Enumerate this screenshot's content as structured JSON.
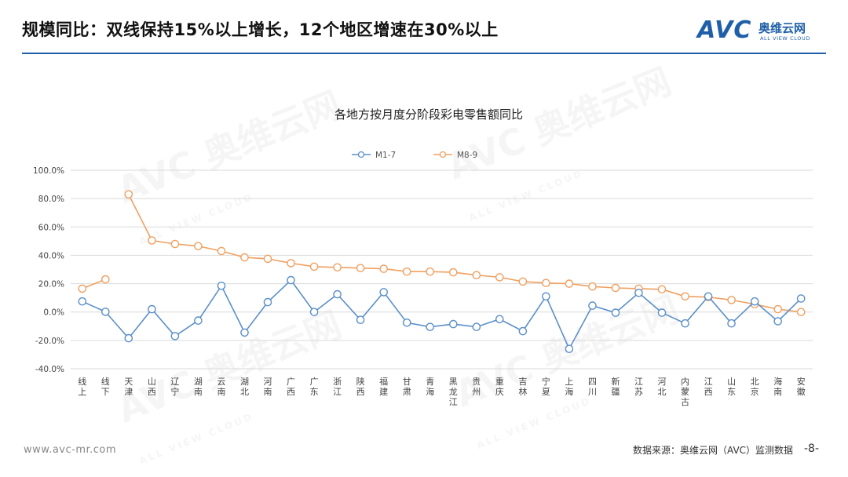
{
  "slide": {
    "title": "规模同比：双线保持15%以上增长，12个地区增速在30%以上",
    "logo_letters": "AVC",
    "logo_cn": "奥维云网",
    "logo_en": "ALL VIEW CLOUD",
    "watermark_cn": "奥维云网",
    "watermark_en": "ALL VIEW CLOUD",
    "footer_url": "www.avc-mr.com",
    "footer_source": "数据来源：奥维云网（AVC）监测数据",
    "page_number": "-8-",
    "accent_color": "#1f5fa8"
  },
  "chart_data": {
    "type": "line",
    "title": "各地方按月度分阶段彩电零售额同比",
    "categories": [
      "线上",
      "线下",
      "天津",
      "山西",
      "辽宁",
      "湖南",
      "云南",
      "湖北",
      "河南",
      "广西",
      "广东",
      "浙江",
      "陕西",
      "福建",
      "甘肃",
      "青海",
      "黑龙江",
      "贵州",
      "重庆",
      "吉林",
      "宁夏",
      "上海",
      "四川",
      "新疆",
      "江苏",
      "河北",
      "内蒙古",
      "江西",
      "山东",
      "北京",
      "海南",
      "安徽"
    ],
    "series": [
      {
        "name": "M1-7",
        "color": "#5b8fc9",
        "values": [
          7.5,
          0.2,
          -18.5,
          2.0,
          -17.0,
          -6.0,
          18.5,
          -14.5,
          7.0,
          22.5,
          0.0,
          12.5,
          -5.5,
          14.0,
          -7.5,
          -10.5,
          -8.5,
          -10.5,
          -5.0,
          -13.5,
          11.0,
          -26.0,
          4.5,
          -0.5,
          13.5,
          -0.5,
          -8.0,
          11.0,
          -8.0,
          7.5,
          -6.5,
          9.5
        ]
      },
      {
        "name": "M8-9",
        "color": "#f0a060",
        "values": [
          16.5,
          23.0,
          83.0,
          50.5,
          48.0,
          46.5,
          43.0,
          38.5,
          37.5,
          34.5,
          32.0,
          31.5,
          31.0,
          30.5,
          28.5,
          28.5,
          28.0,
          26.0,
          24.5,
          21.5,
          20.5,
          20.0,
          18.0,
          17.0,
          16.5,
          16.0,
          11.0,
          10.5,
          8.5,
          5.5,
          2.0,
          0.0
        ]
      }
    ],
    "y_ticks": [
      "100.0%",
      "80.0%",
      "60.0%",
      "40.0%",
      "20.0%",
      "0.0%",
      "-20.0%",
      "-40.0%"
    ],
    "ylim": [
      -40,
      100
    ],
    "y_unit": "%",
    "grid": true,
    "legend_position": "top-center",
    "xlabel": "",
    "ylabel": ""
  }
}
